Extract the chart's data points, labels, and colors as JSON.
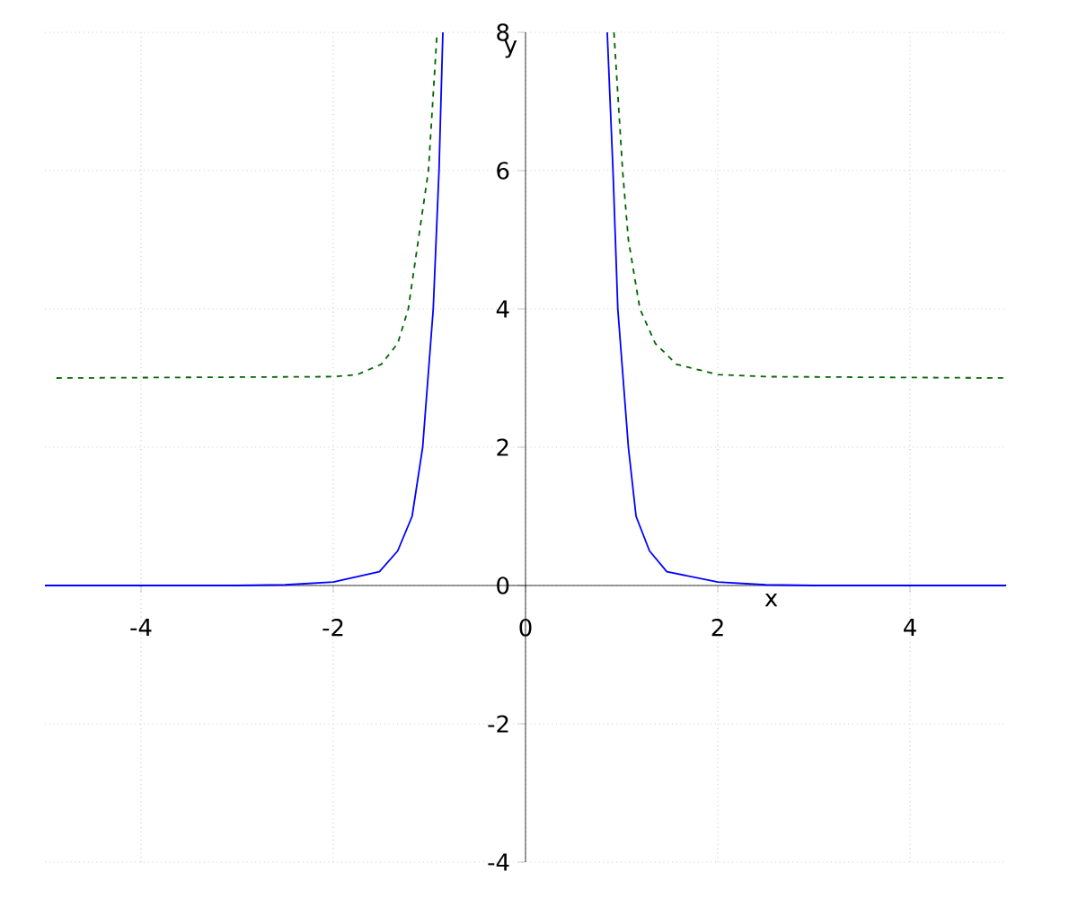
{
  "chart_data": {
    "type": "line",
    "xlabel": "x",
    "ylabel": "y",
    "xlim": [
      -5,
      5
    ],
    "ylim": [
      -4,
      8
    ],
    "xticks": [
      -4,
      -2,
      0,
      2,
      4
    ],
    "yticks": [
      -4,
      -2,
      0,
      2,
      4,
      6,
      8
    ],
    "grid": true,
    "marker": "none",
    "series": [
      {
        "color": "#0000ff",
        "line_style": "solid",
        "x": [
          -5,
          -3,
          -2.5,
          -2,
          -1.52,
          -1.33,
          -1.18,
          -1.07,
          -0.96,
          -0.9,
          -0.86,
          0,
          0.85,
          0.91,
          0.96,
          1.07,
          1.15,
          1.29,
          1.47,
          2,
          2.5,
          3,
          5
        ],
        "values": [
          0,
          0,
          0.01,
          0.05,
          0.2,
          0.5,
          1,
          2,
          4,
          6,
          8,
          null,
          8,
          6,
          4,
          2,
          1,
          0.5,
          0.2,
          0.05,
          0.01,
          0,
          0
        ]
      },
      {
        "color": "#006400",
        "line_style": "dashed",
        "x": [
          -4.88,
          -2,
          -1.75,
          -1.5,
          -1.33,
          -1.22,
          -1.01,
          -0.92,
          0,
          0.92,
          1.01,
          1.07,
          1.19,
          1.35,
          1.57,
          2,
          2.5,
          5
        ],
        "values": [
          3,
          3.02,
          3.05,
          3.2,
          3.5,
          4,
          6,
          8,
          null,
          8,
          6,
          5,
          4,
          3.5,
          3.2,
          3.05,
          3.02,
          3
        ]
      }
    ]
  }
}
